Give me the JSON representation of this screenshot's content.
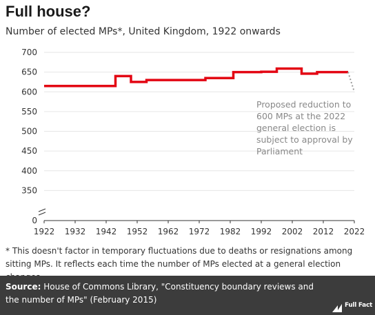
{
  "title": "Full house?",
  "subtitle": "Number of elected MPs*, United Kingdom, 1922 onwards",
  "footnote": "* This doesn't factor in temporary fluctuations due to deaths or resignations among sitting MPs. It reflects each time the number of MPs elected at a general election changes",
  "source_label": "Source:",
  "source_text": "House of Commons Library, \"Constituency boundary reviews and the number of MPs\" (February 2015)",
  "brand": "Full Fact",
  "colors": {
    "line": "#e30613",
    "projection": "#999999",
    "annotation": "#888888",
    "grid": "#e6e6e6",
    "footer": "#3c3c3c"
  },
  "chart_data": {
    "type": "line",
    "xlabel": "",
    "ylabel": "",
    "xlim": [
      1922,
      2022
    ],
    "ylim": [
      300,
      700
    ],
    "axis_break": true,
    "y_ticks": [
      0,
      350,
      400,
      450,
      500,
      550,
      600,
      650,
      700
    ],
    "x_ticks": [
      1922,
      1932,
      1942,
      1952,
      1962,
      1972,
      1982,
      1992,
      2002,
      2012,
      2022
    ],
    "grid": true,
    "series": [
      {
        "style": "step",
        "points": [
          [
            1922,
            615
          ],
          [
            1945,
            615
          ],
          [
            1945,
            640
          ],
          [
            1950,
            640
          ],
          [
            1950,
            625
          ],
          [
            1955,
            625
          ],
          [
            1955,
            630
          ],
          [
            1974,
            630
          ],
          [
            1974,
            635
          ],
          [
            1983,
            635
          ],
          [
            1983,
            650
          ],
          [
            1992,
            650
          ],
          [
            1992,
            651
          ],
          [
            1997,
            651
          ],
          [
            1997,
            659
          ],
          [
            2005,
            659
          ],
          [
            2005,
            646
          ],
          [
            2010,
            646
          ],
          [
            2010,
            650
          ],
          [
            2020,
            650
          ]
        ]
      },
      {
        "style": "dotted",
        "points": [
          [
            2020,
            650
          ],
          [
            2022,
            600
          ]
        ]
      }
    ],
    "annotation": {
      "text": "Proposed reduction to 600 MPs at the 2022 general election is subject to approval by Parliament"
    }
  }
}
